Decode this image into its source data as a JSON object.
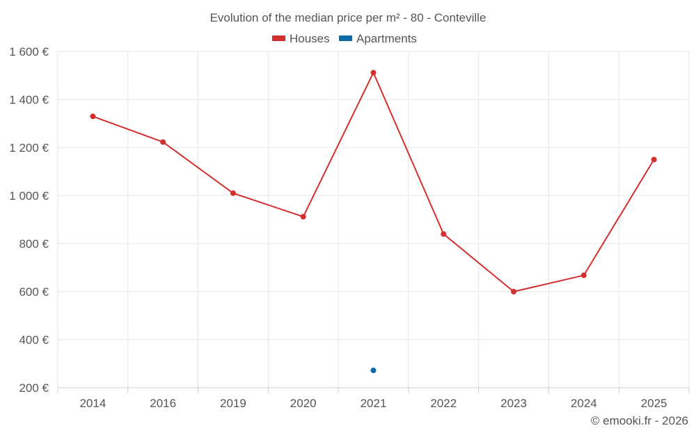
{
  "chart_data": {
    "type": "line",
    "title": "Evolution of the median price per m² - 80 - Conteville",
    "categories": [
      "2014",
      "2016",
      "2019",
      "2020",
      "2021",
      "2022",
      "2023",
      "2024",
      "2025"
    ],
    "series": [
      {
        "name": "Houses",
        "color": "#d32f2f",
        "values": [
          1330,
          1223,
          1010,
          912,
          1512,
          840,
          600,
          668,
          1150
        ]
      },
      {
        "name": "Apartments",
        "color": "#0d6aa8",
        "values": [
          null,
          null,
          null,
          null,
          272,
          null,
          null,
          null,
          null
        ]
      }
    ],
    "yticks": [
      "1 600 €",
      "1 400 €",
      "1 200 €",
      "1 000 €",
      "800 €",
      "600 €",
      "400 €",
      "200 €"
    ],
    "ytick_values": [
      1600,
      1400,
      1200,
      1000,
      800,
      600,
      400,
      200
    ],
    "ylim": [
      200,
      1600
    ],
    "xlabel": "",
    "ylabel": "",
    "grid": true,
    "legend_position": "top-center"
  },
  "credit": "© emooki.fr - 2026"
}
